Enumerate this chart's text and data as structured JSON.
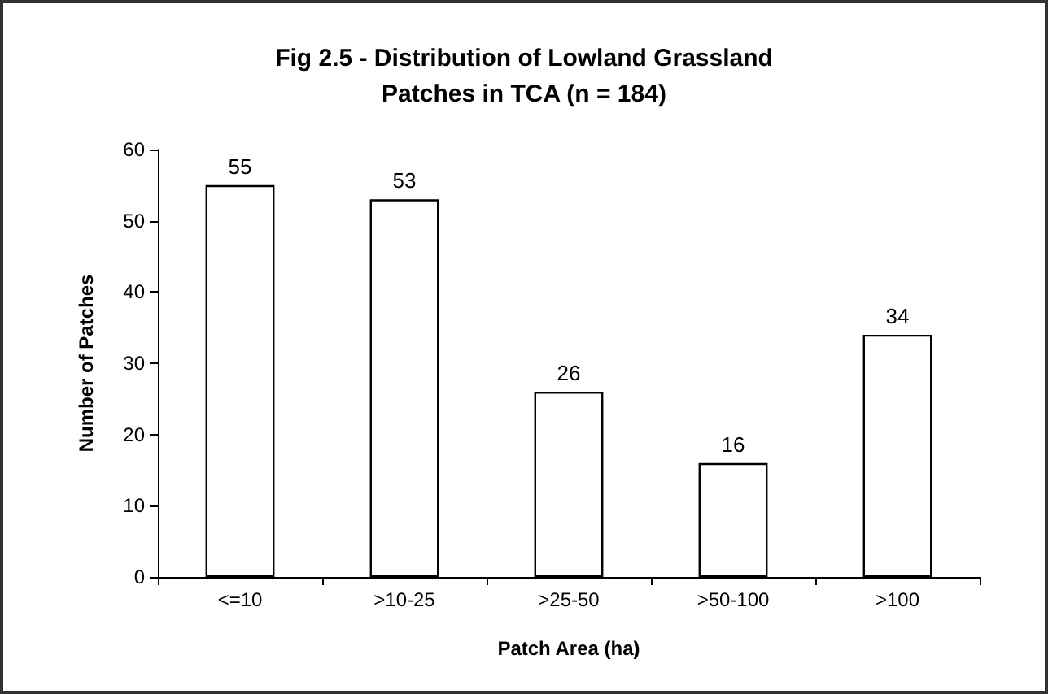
{
  "chart_data": {
    "type": "bar",
    "title": "Fig 2.5 - Distribution of Lowland Grassland\nPatches in TCA (n = 184)",
    "xlabel": "Patch Area (ha)",
    "ylabel": "Number of Patches",
    "categories": [
      "<=10",
      ">10-25",
      ">25-50",
      ">50-100",
      ">100"
    ],
    "values": [
      55,
      53,
      26,
      16,
      34
    ],
    "color": "#ffffff",
    "ylim": [
      0,
      60
    ],
    "yticks": [
      0,
      10,
      20,
      30,
      40,
      50,
      60
    ],
    "grid": false,
    "data_labels": true
  }
}
